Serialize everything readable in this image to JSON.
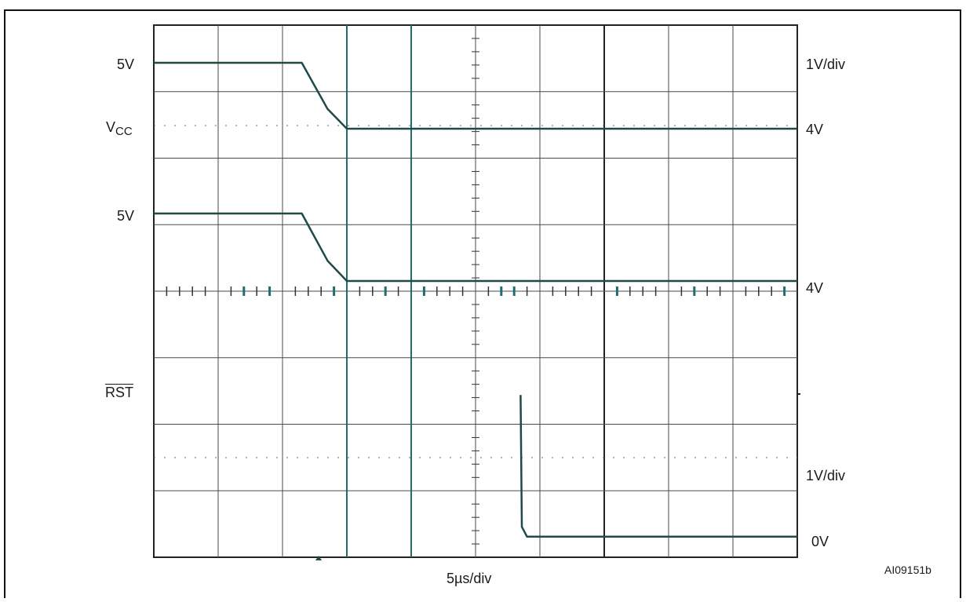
{
  "left_labels": {
    "ch1_level": "5V",
    "ch1_name_main": "V",
    "ch1_name_sub": "CC",
    "ch2_level": "5V",
    "ch3_name": "RST"
  },
  "right_labels": {
    "ch1_scale": "1V/div",
    "ch1_offset": "4V",
    "ch2_offset": "4V",
    "ch3_scale": "1V/div",
    "ch3_offset": "0V"
  },
  "bottom_label": "5µs/div",
  "figure_id": "AI09151b",
  "colors": {
    "grid": "#4a4a4a",
    "grid_accent": "#1e6e6e",
    "trace": "#1f4a4a",
    "frame": "#111111"
  },
  "chart_data": {
    "type": "line",
    "grid": true,
    "divisions": {
      "x": 10,
      "y": 8
    },
    "x_unit": "µs",
    "x_per_div": 5,
    "series": [
      {
        "name": "VCC",
        "x": [
          0,
          11.5,
          13.5,
          15,
          50
        ],
        "y": [
          5,
          5,
          4.3,
          4,
          4
        ]
      },
      {
        "x": [
          0,
          11.5,
          13.5,
          15,
          28.5,
          28.5,
          50
        ],
        "y": [
          5,
          5,
          4.3,
          4,
          4,
          4,
          4
        ]
      },
      {
        "name": "RST",
        "x": [
          0,
          28.5,
          28.5,
          28.6,
          29,
          50
        ],
        "y": [
          null,
          null,
          2.2,
          0.2,
          0.05,
          0.05
        ]
      }
    ]
  }
}
